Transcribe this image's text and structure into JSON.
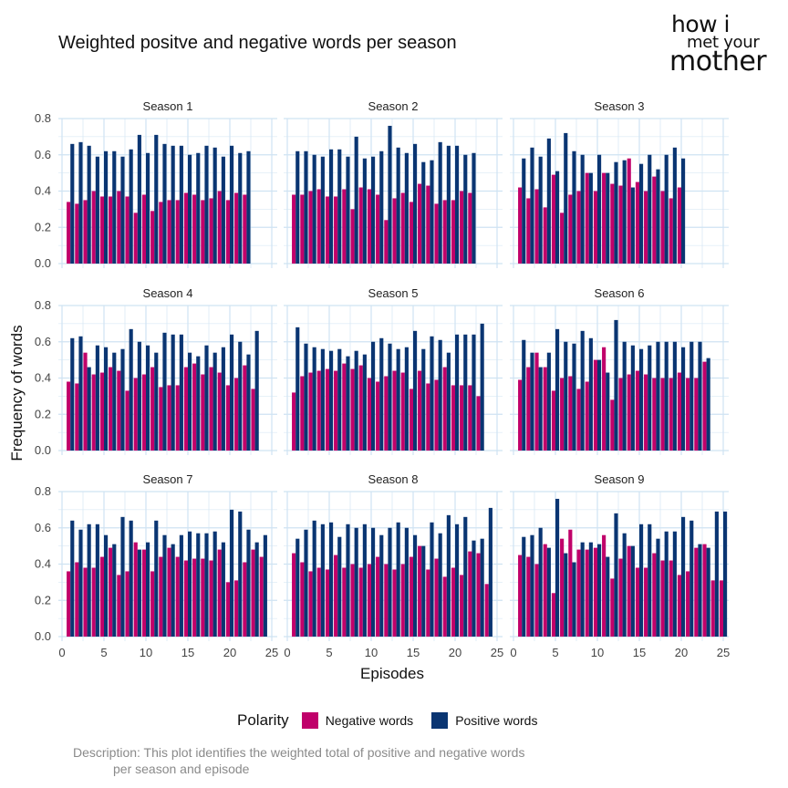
{
  "title": "Weighted positve and negative words per season",
  "logo": {
    "line1": "how i",
    "line2": "met your",
    "line3": "mother"
  },
  "description": {
    "line1": "Description: This plot identifies the weighted total of positive and negative words",
    "line2": "per season and episode"
  },
  "colors": {
    "negative": "#c0006a",
    "positive": "#0a3572",
    "grid": "#cfe3f2"
  },
  "chart_data": {
    "type": "bar",
    "layout": "facet grid 3x3, grouped bars per episode",
    "xlabel": "Episodes",
    "ylabel": "Frequency of words",
    "xlim": [
      0,
      25
    ],
    "ylim": [
      0,
      0.8
    ],
    "x_ticks": [
      "0",
      "5",
      "10",
      "15",
      "20",
      "25"
    ],
    "y_ticks": [
      "0.0",
      "0.2",
      "0.4",
      "0.6",
      "0.8"
    ],
    "legend": {
      "title": "Polarity",
      "position": "bottom",
      "entries": [
        "Negative words",
        "Positive words"
      ]
    },
    "facets": [
      {
        "name": "Season 1",
        "negative": [
          0.34,
          0.33,
          0.35,
          0.4,
          0.37,
          0.37,
          0.4,
          0.37,
          0.28,
          0.38,
          0.29,
          0.34,
          0.35,
          0.35,
          0.39,
          0.38,
          0.35,
          0.36,
          0.4,
          0.35,
          0.39,
          0.38
        ],
        "positive": [
          0.66,
          0.67,
          0.65,
          0.59,
          0.62,
          0.62,
          0.59,
          0.63,
          0.71,
          0.61,
          0.71,
          0.66,
          0.65,
          0.65,
          0.6,
          0.61,
          0.65,
          0.64,
          0.59,
          0.65,
          0.61,
          0.62
        ]
      },
      {
        "name": "Season 2",
        "negative": [
          0.38,
          0.38,
          0.4,
          0.41,
          0.37,
          0.37,
          0.41,
          0.3,
          0.42,
          0.41,
          0.38,
          0.24,
          0.36,
          0.39,
          0.34,
          0.44,
          0.43,
          0.33,
          0.35,
          0.35,
          0.4,
          0.39
        ],
        "positive": [
          0.62,
          0.62,
          0.6,
          0.59,
          0.63,
          0.63,
          0.59,
          0.7,
          0.58,
          0.59,
          0.62,
          0.76,
          0.64,
          0.61,
          0.66,
          0.56,
          0.57,
          0.67,
          0.65,
          0.65,
          0.6,
          0.61
        ]
      },
      {
        "name": "Season 3",
        "negative": [
          0.42,
          0.36,
          0.41,
          0.31,
          0.49,
          0.28,
          0.38,
          0.4,
          0.5,
          0.4,
          0.5,
          0.44,
          0.43,
          0.58,
          0.45,
          0.4,
          0.48,
          0.4,
          0.36,
          0.42
        ],
        "positive": [
          0.58,
          0.64,
          0.59,
          0.69,
          0.51,
          0.72,
          0.62,
          0.6,
          0.5,
          0.6,
          0.5,
          0.56,
          0.57,
          0.42,
          0.55,
          0.6,
          0.52,
          0.6,
          0.64,
          0.58
        ]
      },
      {
        "name": "Season 4",
        "negative": [
          0.38,
          0.37,
          0.54,
          0.42,
          0.43,
          0.46,
          0.44,
          0.33,
          0.4,
          0.42,
          0.46,
          0.35,
          0.36,
          0.36,
          0.46,
          0.48,
          0.42,
          0.46,
          0.43,
          0.36,
          0.4,
          0.47,
          0.34
        ],
        "positive": [
          0.62,
          0.63,
          0.46,
          0.58,
          0.57,
          0.54,
          0.56,
          0.67,
          0.6,
          0.58,
          0.54,
          0.65,
          0.64,
          0.64,
          0.54,
          0.52,
          0.58,
          0.54,
          0.57,
          0.64,
          0.6,
          0.53,
          0.66
        ]
      },
      {
        "name": "Season 5",
        "negative": [
          0.32,
          0.41,
          0.43,
          0.44,
          0.45,
          0.44,
          0.48,
          0.45,
          0.47,
          0.4,
          0.38,
          0.41,
          0.44,
          0.43,
          0.34,
          0.44,
          0.37,
          0.39,
          0.46,
          0.36,
          0.36,
          0.36,
          0.3
        ],
        "positive": [
          0.68,
          0.59,
          0.57,
          0.56,
          0.55,
          0.56,
          0.52,
          0.55,
          0.53,
          0.6,
          0.62,
          0.59,
          0.56,
          0.57,
          0.66,
          0.56,
          0.63,
          0.61,
          0.54,
          0.64,
          0.64,
          0.64,
          0.7
        ]
      },
      {
        "name": "Season 6",
        "negative": [
          0.39,
          0.46,
          0.54,
          0.46,
          0.33,
          0.4,
          0.41,
          0.34,
          0.38,
          0.5,
          0.57,
          0.28,
          0.4,
          0.42,
          0.44,
          0.42,
          0.4,
          0.4,
          0.4,
          0.43,
          0.4,
          0.4,
          0.49
        ],
        "positive": [
          0.61,
          0.54,
          0.46,
          0.54,
          0.67,
          0.6,
          0.59,
          0.66,
          0.62,
          0.5,
          0.43,
          0.72,
          0.6,
          0.58,
          0.56,
          0.58,
          0.6,
          0.6,
          0.6,
          0.57,
          0.6,
          0.6,
          0.51
        ]
      },
      {
        "name": "Season 7",
        "negative": [
          0.36,
          0.41,
          0.38,
          0.38,
          0.44,
          0.49,
          0.34,
          0.36,
          0.52,
          0.48,
          0.36,
          0.44,
          0.49,
          0.44,
          0.42,
          0.43,
          0.43,
          0.42,
          0.48,
          0.3,
          0.31,
          0.41,
          0.48,
          0.44
        ],
        "positive": [
          0.64,
          0.59,
          0.62,
          0.62,
          0.56,
          0.51,
          0.66,
          0.64,
          0.48,
          0.52,
          0.64,
          0.56,
          0.51,
          0.56,
          0.58,
          0.57,
          0.57,
          0.58,
          0.52,
          0.7,
          0.69,
          0.59,
          0.52,
          0.56
        ]
      },
      {
        "name": "Season 8",
        "negative": [
          0.46,
          0.41,
          0.36,
          0.38,
          0.37,
          0.45,
          0.38,
          0.4,
          0.38,
          0.4,
          0.44,
          0.4,
          0.37,
          0.4,
          0.44,
          0.5,
          0.37,
          0.43,
          0.33,
          0.38,
          0.34,
          0.47,
          0.46,
          0.29
        ],
        "positive": [
          0.54,
          0.59,
          0.64,
          0.62,
          0.63,
          0.55,
          0.62,
          0.6,
          0.62,
          0.6,
          0.56,
          0.6,
          0.63,
          0.6,
          0.56,
          0.5,
          0.63,
          0.57,
          0.67,
          0.62,
          0.66,
          0.53,
          0.54,
          0.71
        ]
      },
      {
        "name": "Season 9",
        "negative": [
          0.45,
          0.44,
          0.4,
          0.51,
          0.24,
          0.54,
          0.59,
          0.48,
          0.48,
          0.49,
          0.56,
          0.32,
          0.43,
          0.5,
          0.38,
          0.38,
          0.46,
          0.42,
          0.42,
          0.34,
          0.36,
          0.49,
          0.51,
          0.31,
          0.31
        ],
        "positive": [
          0.55,
          0.56,
          0.6,
          0.49,
          0.76,
          0.46,
          0.41,
          0.52,
          0.52,
          0.51,
          0.44,
          0.68,
          0.57,
          0.5,
          0.62,
          0.62,
          0.54,
          0.58,
          0.58,
          0.66,
          0.64,
          0.51,
          0.49,
          0.69,
          0.69
        ]
      }
    ]
  }
}
